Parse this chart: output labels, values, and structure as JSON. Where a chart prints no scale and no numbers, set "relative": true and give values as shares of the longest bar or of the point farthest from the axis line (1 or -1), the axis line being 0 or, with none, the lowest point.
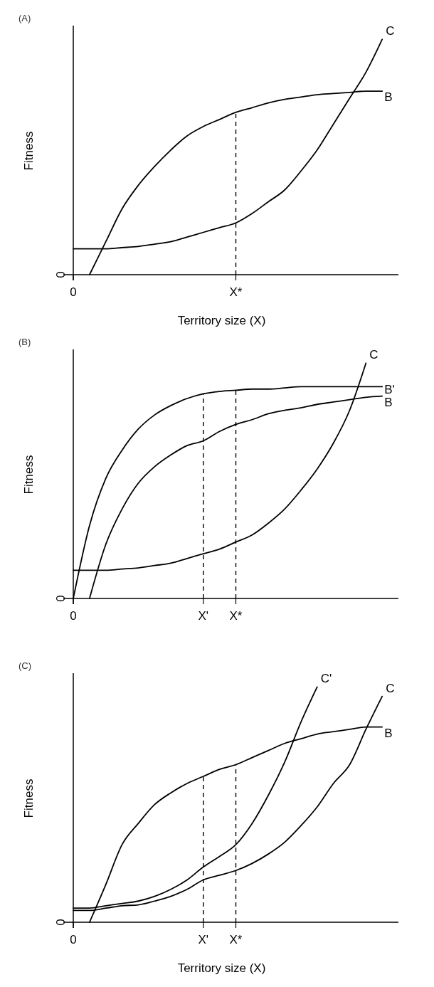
{
  "chart_data": [
    {
      "type": "line",
      "title": "(A)",
      "xlabel": "Territory size (X)",
      "ylabel": "Fitness",
      "relative": true,
      "categories": [
        "0",
        null,
        null,
        null,
        null,
        null,
        null,
        null,
        null,
        null,
        "X*",
        null,
        null,
        null,
        null,
        null,
        null,
        null,
        null,
        null,
        null
      ],
      "line_style": "solid",
      "annotations": [
        "0"
      ],
      "ref_lines": [
        {
          "axis": "x",
          "value": "X*",
          "line_style": "dashed"
        }
      ],
      "series": [
        {
          "name": "C",
          "color": "#000000",
          "values": [
            0.11,
            0.11,
            0.11,
            0.115,
            0.12,
            0.13,
            0.14,
            0.16,
            0.18,
            0.2,
            0.22,
            0.26,
            0.31,
            0.36,
            0.44,
            0.53,
            0.64,
            0.75,
            0.86,
            1,
            null
          ]
        },
        {
          "name": "B",
          "color": "#000000",
          "values": [
            null,
            0,
            0.14,
            0.28,
            0.38,
            0.46,
            0.53,
            0.59,
            0.63,
            0.66,
            0.69,
            0.71,
            0.73,
            0.745,
            0.755,
            0.765,
            0.77,
            0.775,
            0.78,
            0.78,
            null
          ]
        }
      ]
    },
    {
      "type": "line",
      "title": "(B)",
      "ylabel": "Fitness",
      "relative": true,
      "categories": [
        "0",
        null,
        null,
        null,
        null,
        null,
        null,
        null,
        "X'",
        null,
        "X*",
        null,
        null,
        null,
        null,
        null,
        null,
        null,
        null,
        null,
        null
      ],
      "line_style": "solid",
      "annotations": [
        "0"
      ],
      "ref_lines": [
        {
          "axis": "x",
          "value": "X'",
          "line_style": "dashed"
        },
        {
          "axis": "x",
          "value": "X*",
          "line_style": "dashed"
        }
      ],
      "series": [
        {
          "name": "C",
          "color": "#000000",
          "values": [
            0.12,
            0.12,
            0.12,
            0.125,
            0.13,
            0.14,
            0.15,
            0.17,
            0.19,
            0.21,
            0.24,
            0.27,
            0.32,
            0.38,
            0.46,
            0.55,
            0.66,
            0.8,
            1,
            null,
            null
          ]
        },
        {
          "name": "B'",
          "color": "#000000",
          "values": [
            0,
            0.31,
            0.51,
            0.63,
            0.72,
            0.78,
            0.82,
            0.85,
            0.87,
            0.88,
            0.885,
            0.89,
            0.89,
            0.895,
            0.9,
            0.9,
            0.9,
            0.9,
            0.9,
            0.9,
            null
          ]
        },
        {
          "name": "B",
          "color": "#000000",
          "values": [
            null,
            0,
            0.23,
            0.38,
            0.49,
            0.56,
            0.61,
            0.65,
            0.67,
            0.71,
            0.74,
            0.76,
            0.785,
            0.8,
            0.81,
            0.825,
            0.835,
            0.845,
            0.855,
            0.86,
            null
          ]
        }
      ]
    },
    {
      "type": "line",
      "title": "(C)",
      "xlabel": "Territory size (X)",
      "ylabel": "Fitness",
      "relative": true,
      "categories": [
        "0",
        null,
        null,
        null,
        null,
        null,
        null,
        null,
        "X'",
        null,
        "X*",
        null,
        null,
        null,
        null,
        null,
        null,
        null,
        null,
        null,
        null
      ],
      "line_style": "solid",
      "annotations": [
        "0"
      ],
      "ref_lines": [
        {
          "axis": "x",
          "value": "X'",
          "line_style": "dashed"
        },
        {
          "axis": "x",
          "value": "X*",
          "line_style": "dashed"
        }
      ],
      "series": [
        {
          "name": "C'",
          "color": "#000000",
          "values": [
            0.06,
            0.06,
            0.07,
            0.08,
            0.09,
            0.11,
            0.14,
            0.18,
            0.235,
            0.28,
            0.33,
            0.42,
            0.54,
            0.68,
            0.85,
            1,
            null,
            null,
            null,
            null,
            null
          ]
        },
        {
          "name": "C",
          "color": "#000000",
          "values": [
            0.05,
            0.05,
            0.06,
            0.07,
            0.074,
            0.09,
            0.11,
            0.14,
            0.18,
            0.2,
            0.22,
            0.25,
            0.29,
            0.34,
            0.41,
            0.49,
            0.59,
            0.67,
            0.82,
            0.96,
            null
          ]
        },
        {
          "name": "B",
          "color": "#000000",
          "values": [
            null,
            0,
            0.16,
            0.33,
            0.42,
            0.5,
            0.55,
            0.59,
            0.62,
            0.65,
            0.67,
            0.7,
            0.73,
            0.76,
            0.78,
            0.8,
            0.81,
            0.82,
            0.83,
            0.83,
            null
          ]
        }
      ]
    }
  ]
}
